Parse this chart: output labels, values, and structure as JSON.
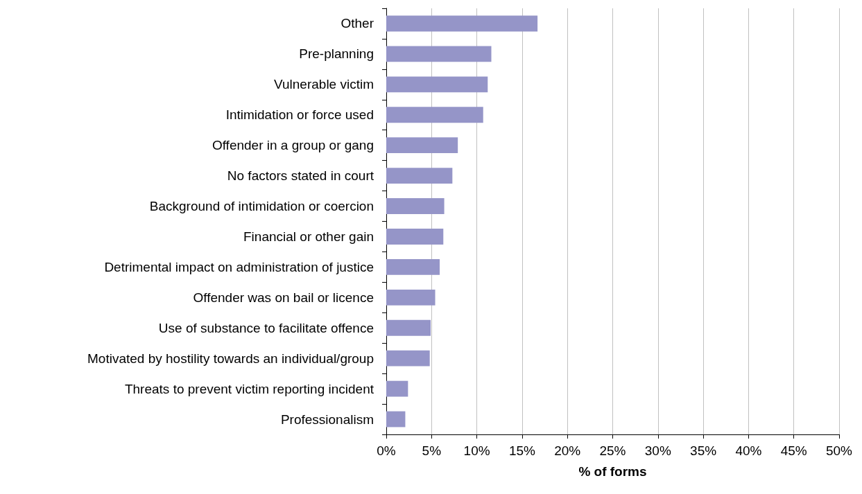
{
  "chart_data": {
    "type": "bar",
    "orientation": "horizontal",
    "xlabel": "% of forms",
    "categories": [
      "Other",
      "Pre-planning",
      "Vulnerable victim",
      "Intimidation or force used",
      "Offender in a group or gang",
      "No factors stated in court",
      "Background of intimidation or coercion",
      "Financial or other gain",
      "Detrimental impact on administration of justice",
      "Offender was on bail or licence",
      "Use of substance to facilitate offence",
      "Motivated by hostility towards an individual/group",
      "Threats to prevent victim reporting incident",
      "Professionalism"
    ],
    "values": [
      16.7,
      11.6,
      11.2,
      10.7,
      7.9,
      7.3,
      6.4,
      6.3,
      5.9,
      5.4,
      4.9,
      4.8,
      2.4,
      2.1
    ],
    "color": "#9595c8",
    "xlim": [
      0,
      50
    ],
    "xticks": [
      {
        "value": 0,
        "label": "0%"
      },
      {
        "value": 5,
        "label": "5%"
      },
      {
        "value": 10,
        "label": "10%"
      },
      {
        "value": 15,
        "label": "15%"
      },
      {
        "value": 20,
        "label": "20%"
      },
      {
        "value": 25,
        "label": "25%"
      },
      {
        "value": 30,
        "label": "30%"
      },
      {
        "value": 35,
        "label": "35%"
      },
      {
        "value": 40,
        "label": "40%"
      },
      {
        "value": 45,
        "label": "45%"
      },
      {
        "value": 50,
        "label": "50%"
      }
    ],
    "grid": "x"
  }
}
